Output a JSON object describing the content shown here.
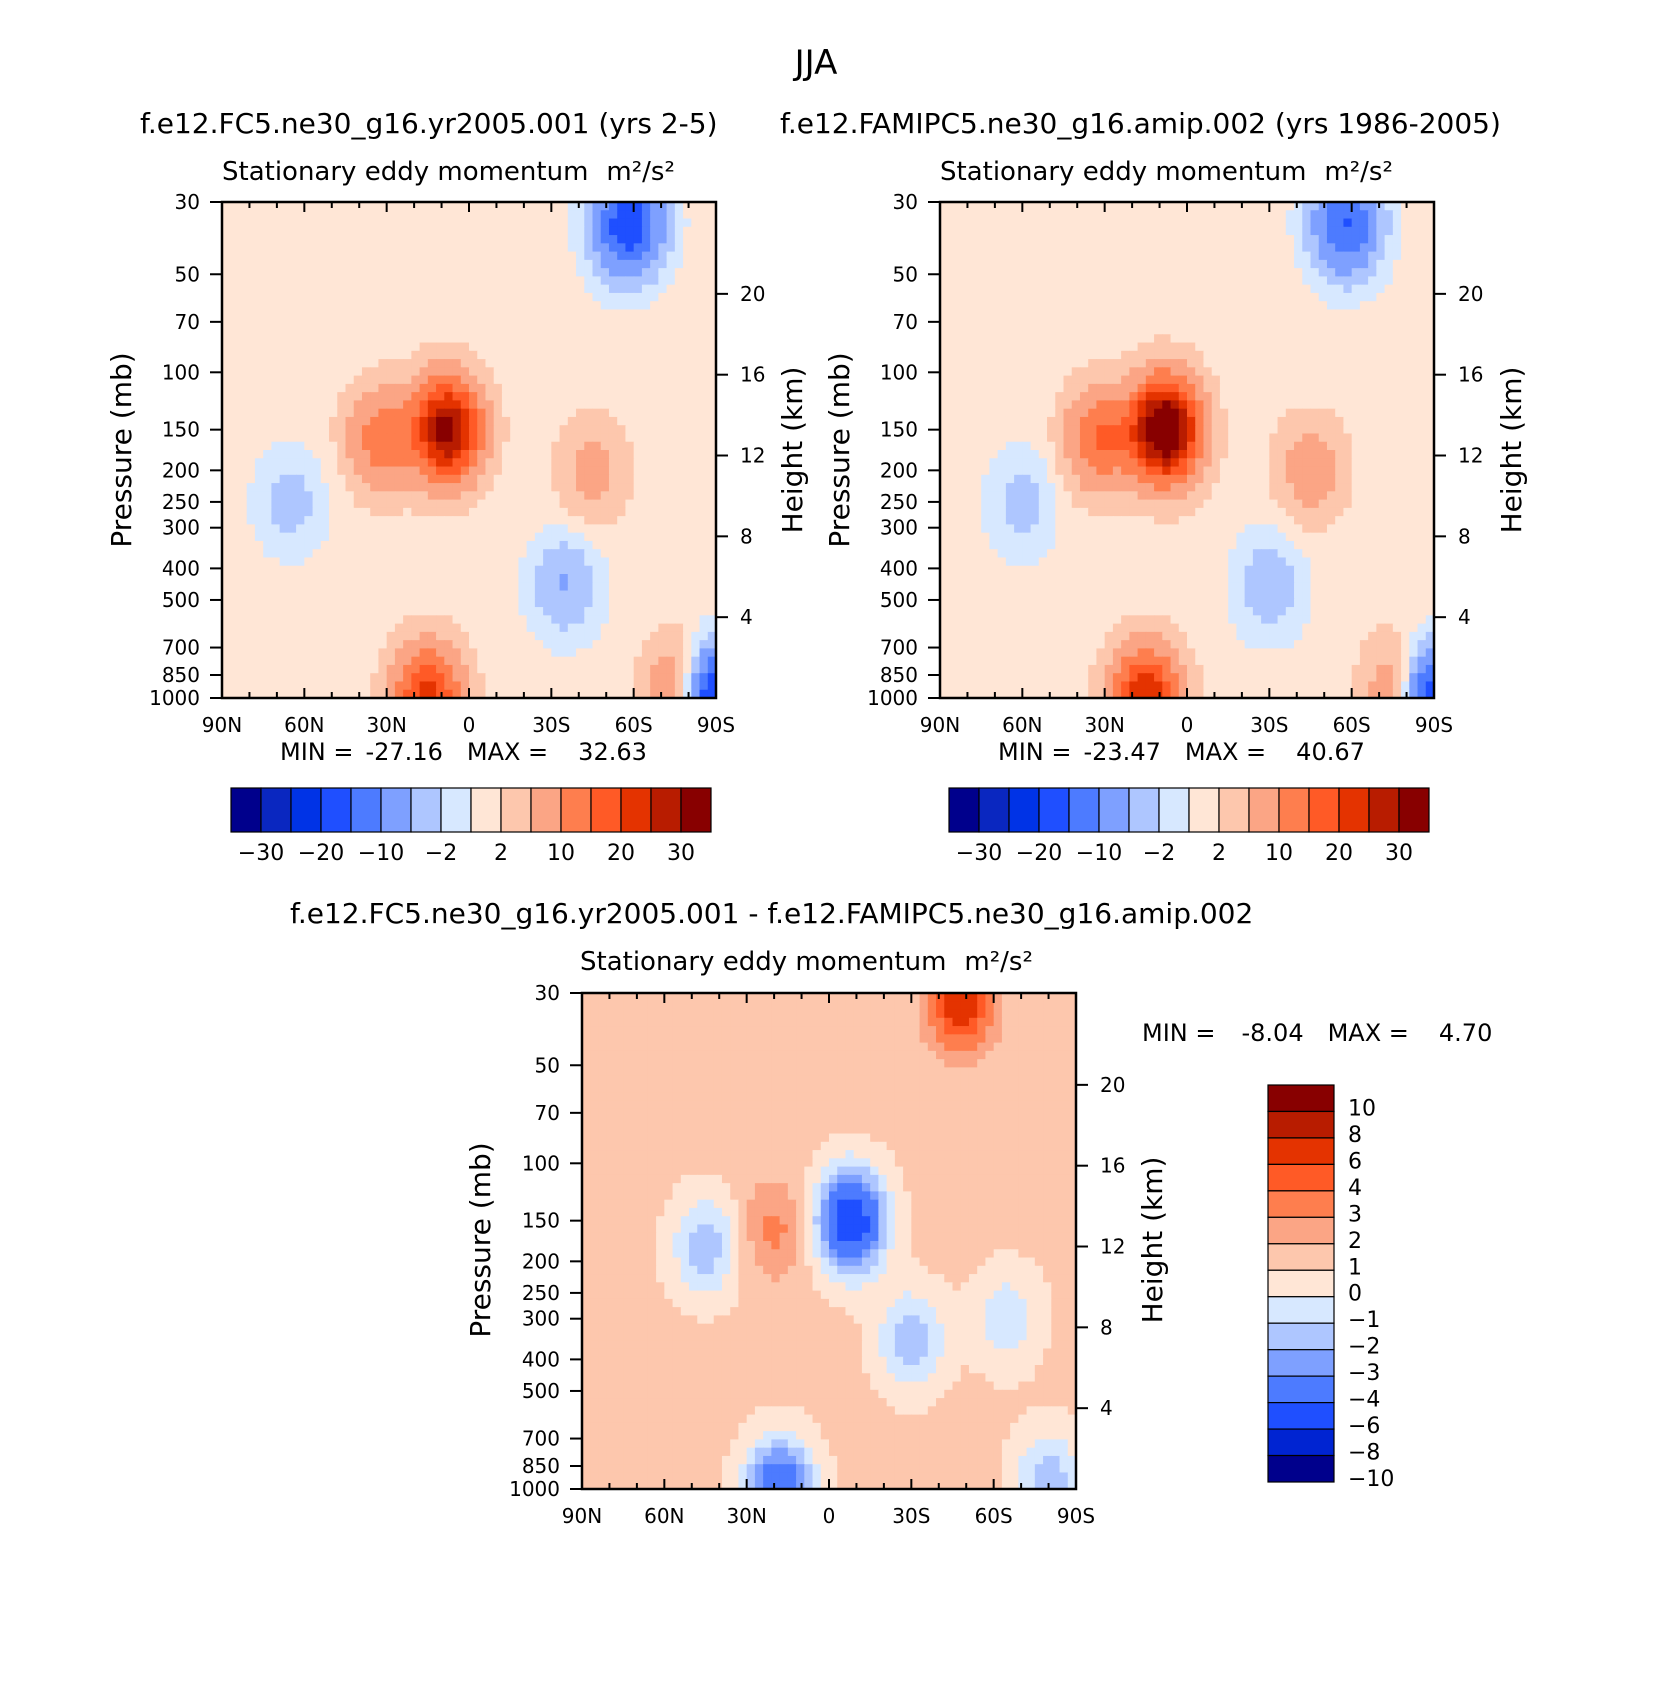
{
  "figure_title": "JJA",
  "colors": {
    "abs_scale": [
      "#00008c",
      "#0a27c0",
      "#0033e6",
      "#1f4fff",
      "#4d7bff",
      "#7ea0ff",
      "#aec6ff",
      "#d7e8ff",
      "#ffe6d6",
      "#fdc7ad",
      "#fba585",
      "#fe7e4e",
      "#ff5a26",
      "#e43300",
      "#b81c00",
      "#880000"
    ],
    "diff_scale": [
      "#00008c",
      "#0024d2",
      "#1f4fff",
      "#4d7bff",
      "#7ea0ff",
      "#aec6ff",
      "#d7e8ff",
      "#ffe6d6",
      "#fdc7ad",
      "#fba585",
      "#fe7e4e",
      "#ff5a26",
      "#e43300",
      "#b81c00",
      "#880000"
    ]
  },
  "chart_data": [
    {
      "id": "panel-1",
      "type": "heatmap",
      "header": "f.e12.FC5.ne30_g16.yr2005.001 (yrs 2-5)",
      "title": "Stationary eddy momentum",
      "units_label": "m²/s²",
      "xlabel": "",
      "ylabel": "Pressure (mb)",
      "ylabel_right": "Height (km)",
      "x_ticks": [
        "90N",
        "60N",
        "30N",
        "0",
        "30S",
        "60S",
        "90S"
      ],
      "x_tick_values": [
        90,
        60,
        30,
        0,
        -30,
        -60,
        -90
      ],
      "y_ticks": [
        "30",
        "50",
        "70",
        "100",
        "150",
        "200",
        "250",
        "300",
        "400",
        "500",
        "700",
        "850",
        "1000"
      ],
      "y_tick_values": [
        30,
        50,
        70,
        100,
        150,
        200,
        250,
        300,
        400,
        500,
        700,
        850,
        1000
      ],
      "y_right_ticks": [
        "20",
        "16",
        "12",
        "8",
        "4"
      ],
      "y_right_tick_values": [
        20,
        16,
        12,
        8,
        4
      ],
      "ylim": [
        1000,
        30
      ],
      "xlim": [
        90,
        -90
      ],
      "min_label": "MIN =",
      "min_value": "-27.16",
      "max_label": "MAX =",
      "max_value": "32.63",
      "colorbar_labels": [
        "-30",
        "-20",
        "-10",
        "-2",
        "2",
        "10",
        "20",
        "30"
      ],
      "contour_levels": [
        -35,
        -30,
        -25,
        -20,
        -15,
        -10,
        -5,
        -2,
        0,
        2,
        5,
        10,
        15,
        20,
        25,
        30,
        35
      ],
      "features": [
        {
          "lat": 8,
          "p": 150,
          "value": 31
        },
        {
          "lat": 32,
          "p": 160,
          "value": 12
        },
        {
          "lat": -45,
          "p": 200,
          "value": 6
        },
        {
          "lat": -58,
          "p": 35,
          "value": -20
        },
        {
          "lat": -35,
          "p": 450,
          "value": -6
        },
        {
          "lat": 65,
          "p": 250,
          "value": -4
        },
        {
          "lat": 15,
          "p": 1000,
          "value": 22
        },
        {
          "lat": -78,
          "p": 950,
          "value": 14
        },
        {
          "lat": -88,
          "p": 1000,
          "value": -27
        }
      ]
    },
    {
      "id": "panel-2",
      "type": "heatmap",
      "header": "f.e12.FAMIPC5.ne30_g16.amip.002 (yrs 1986-2005)",
      "title": "Stationary eddy momentum",
      "units_label": "m²/s²",
      "xlabel": "",
      "ylabel": "Pressure (mb)",
      "ylabel_right": "Height (km)",
      "x_ticks": [
        "90N",
        "60N",
        "30N",
        "0",
        "30S",
        "60S",
        "90S"
      ],
      "x_tick_values": [
        90,
        60,
        30,
        0,
        -30,
        -60,
        -90
      ],
      "y_ticks": [
        "30",
        "50",
        "70",
        "100",
        "150",
        "200",
        "250",
        "300",
        "400",
        "500",
        "700",
        "850",
        "1000"
      ],
      "y_tick_values": [
        30,
        50,
        70,
        100,
        150,
        200,
        250,
        300,
        400,
        500,
        700,
        850,
        1000
      ],
      "y_right_ticks": [
        "20",
        "16",
        "12",
        "8",
        "4"
      ],
      "y_right_tick_values": [
        20,
        16,
        12,
        8,
        4
      ],
      "ylim": [
        1000,
        30
      ],
      "xlim": [
        90,
        -90
      ],
      "min_label": "MIN =",
      "min_value": "-23.47",
      "max_label": "MAX =",
      "max_value": "40.67",
      "colorbar_labels": [
        "-30",
        "-20",
        "-10",
        "-2",
        "2",
        "10",
        "20",
        "30"
      ],
      "contour_levels": [
        -35,
        -30,
        -25,
        -20,
        -15,
        -10,
        -5,
        -2,
        0,
        2,
        5,
        10,
        15,
        20,
        25,
        30,
        35
      ],
      "features": [
        {
          "lat": 8,
          "p": 150,
          "value": 38
        },
        {
          "lat": 32,
          "p": 160,
          "value": 14
        },
        {
          "lat": -45,
          "p": 200,
          "value": 7
        },
        {
          "lat": -58,
          "p": 35,
          "value": -16
        },
        {
          "lat": -30,
          "p": 450,
          "value": -5
        },
        {
          "lat": 60,
          "p": 250,
          "value": -4
        },
        {
          "lat": 15,
          "p": 1000,
          "value": 24
        },
        {
          "lat": -78,
          "p": 950,
          "value": 12
        },
        {
          "lat": -88,
          "p": 1000,
          "value": -23
        }
      ]
    },
    {
      "id": "panel-3",
      "type": "heatmap",
      "header": "f.e12.FC5.ne30_g16.yr2005.001 - f.e12.FAMIPC5.ne30_g16.amip.002",
      "title": "Stationary eddy momentum",
      "units_label": "m²/s²",
      "xlabel": "",
      "ylabel": "Pressure (mb)",
      "ylabel_right": "Height (km)",
      "x_ticks": [
        "90N",
        "60N",
        "30N",
        "0",
        "30S",
        "60S",
        "90S"
      ],
      "x_tick_values": [
        90,
        60,
        30,
        0,
        -30,
        -60,
        -90
      ],
      "y_ticks": [
        "30",
        "50",
        "70",
        "100",
        "150",
        "200",
        "250",
        "300",
        "400",
        "500",
        "700",
        "850",
        "1000"
      ],
      "y_tick_values": [
        30,
        50,
        70,
        100,
        150,
        200,
        250,
        300,
        400,
        500,
        700,
        850,
        1000
      ],
      "y_right_ticks": [
        "20",
        "16",
        "12",
        "8",
        "4"
      ],
      "y_right_tick_values": [
        20,
        16,
        12,
        8,
        4
      ],
      "ylim": [
        1000,
        30
      ],
      "xlim": [
        90,
        -90
      ],
      "min_label": "MIN =",
      "min_value": "-8.04",
      "max_label": "MAX =",
      "max_value": "4.70",
      "colorbar_labels": [
        "10",
        "8",
        "6",
        "4",
        "3",
        "2",
        "1",
        "0",
        "-1",
        "-2",
        "-3",
        "-4",
        "-6",
        "-8",
        "-10"
      ],
      "contour_levels": [
        -12,
        -10,
        -8,
        -6,
        -4,
        -3,
        -2,
        -1,
        0,
        1,
        2,
        3,
        4,
        6,
        8,
        10,
        12
      ],
      "features": [
        {
          "lat": -8,
          "p": 150,
          "value": -8
        },
        {
          "lat": -48,
          "p": 32,
          "value": 4.5
        },
        {
          "lat": 20,
          "p": 160,
          "value": 2
        },
        {
          "lat": 45,
          "p": 180,
          "value": -3
        },
        {
          "lat": -30,
          "p": 350,
          "value": -3
        },
        {
          "lat": -65,
          "p": 300,
          "value": -2
        },
        {
          "lat": 18,
          "p": 1000,
          "value": -6
        },
        {
          "lat": -80,
          "p": 950,
          "value": -3
        }
      ]
    }
  ]
}
